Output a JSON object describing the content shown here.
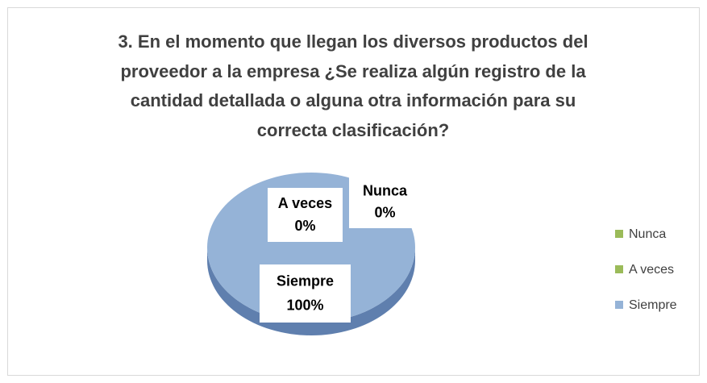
{
  "chart_data": {
    "type": "pie",
    "title": "3. En el momento que llegan los diversos productos del proveedor a la empresa ¿Se realiza algún registro de la cantidad detallada o alguna otra información para su correcta clasificación?",
    "categories": [
      "Nunca",
      "A veces",
      "Siempre"
    ],
    "values": [
      0,
      0,
      100
    ],
    "value_labels": [
      "0%",
      "0%",
      "100%"
    ],
    "colors": [
      "#9bbb59",
      "#9bbb59",
      "#95b3d7"
    ],
    "legend": "right"
  }
}
